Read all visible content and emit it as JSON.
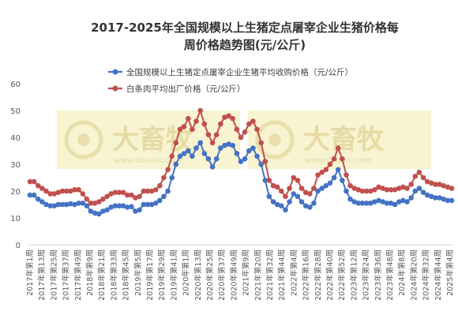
{
  "chart_data": {
    "type": "line",
    "title": "2017-2025年全国规模以上生猪定点屠宰企业生猪价格每周价格趋势图(元/公斤)",
    "title_lines": [
      "2017-2025年全国规模以上生猪定点屠宰企业生猪价格每",
      "周价格趋势图(元/公斤)"
    ],
    "ylim": [
      0,
      60
    ],
    "yticks": [
      "0",
      "10",
      "20",
      "30",
      "40",
      "50",
      "60"
    ],
    "grid": false,
    "legend_position": "top-right",
    "watermark": {
      "text": "大畜牧",
      "url": "www.dxumu.com",
      "color": "#f5efc0"
    },
    "x_labels": [
      "2017年第1周",
      "2017年第13周",
      "2017年第25周",
      "2017年第37周",
      "2017年第49周",
      "2018年第9周",
      "2018年第21周",
      "2018年第33周",
      "2018年第45周",
      "2019年第5周",
      "2019年第17周",
      "2019年第29周",
      "2019年第41周",
      "2020年第1周",
      "2020年第13周",
      "2020年第25周",
      "2020年第37周",
      "2020年第49周",
      "2021年第9周",
      "2021年第20周",
      "2021年第32周",
      "2021年第44周",
      "2022年第4周",
      "2022年第16周",
      "2022年第28周",
      "2022年第40周",
      "2022年第52周",
      "2023年第12周",
      "2023年第24周",
      "2023年第36周",
      "2023年第48周",
      "2024年第8周",
      "2024年第20周",
      "2024年第32周",
      "2024年第44周",
      "2025年第4周"
    ],
    "series": [
      {
        "name": "全国规模以上生猪定点屠宰企业生猪平均收购价格（元/公斤）",
        "color": "#4472c4",
        "values": [
          18.5,
          18.5,
          17,
          16,
          15,
          14.5,
          14.5,
          15,
          15,
          15,
          15.3,
          15,
          15.5,
          15.5,
          14.5,
          12.5,
          11.8,
          11.5,
          12.5,
          13,
          14,
          14.5,
          14.5,
          14.5,
          14,
          14.2,
          12.5,
          13,
          15,
          15,
          15,
          15.5,
          16.5,
          18,
          20,
          25,
          30,
          33,
          34,
          35,
          33,
          36,
          38,
          34,
          32,
          29,
          32,
          36,
          37,
          37.5,
          37,
          34,
          31,
          32,
          35,
          36,
          33,
          30,
          24,
          18,
          16,
          15,
          14.5,
          13,
          16,
          19,
          18,
          16,
          14.5,
          14,
          15.5,
          20,
          21,
          22,
          23,
          25,
          28,
          24,
          20,
          17,
          16,
          15.5,
          15.5,
          15.5,
          15.5,
          16,
          16.5,
          16,
          15.5,
          15.5,
          15,
          16,
          16.5,
          16,
          17.5,
          20,
          21,
          19.5,
          18.5,
          18,
          17.5,
          17.5,
          17,
          16.5,
          16.5
        ]
      },
      {
        "name": "白条肉平均出厂价格（元/公斤）",
        "color": "#c0504d",
        "values": [
          23.5,
          23.5,
          22,
          21,
          20,
          19,
          19,
          19.5,
          20,
          20,
          20,
          20.5,
          20.5,
          19,
          17,
          15.5,
          15.5,
          16,
          17,
          18,
          19,
          19.5,
          19.5,
          19.5,
          18.5,
          18.5,
          17.5,
          18,
          20,
          20,
          20,
          20.5,
          22,
          25,
          28,
          33,
          38,
          43,
          44,
          47,
          43,
          46,
          50,
          45,
          41,
          38,
          41,
          45,
          47.5,
          48,
          47,
          43,
          40,
          42,
          45,
          46,
          43,
          38,
          31,
          24,
          22,
          21.5,
          20,
          18,
          21,
          25,
          24,
          21,
          19.5,
          19,
          21,
          26,
          27,
          28,
          30,
          32,
          36,
          32,
          26,
          22,
          21,
          20.5,
          20,
          20,
          20,
          20.5,
          21.5,
          21,
          20.5,
          20.5,
          20.5,
          21,
          21.5,
          21,
          22.5,
          25.5,
          27,
          25,
          23.5,
          23,
          22.5,
          22.5,
          22,
          21.5,
          21
        ]
      }
    ]
  }
}
